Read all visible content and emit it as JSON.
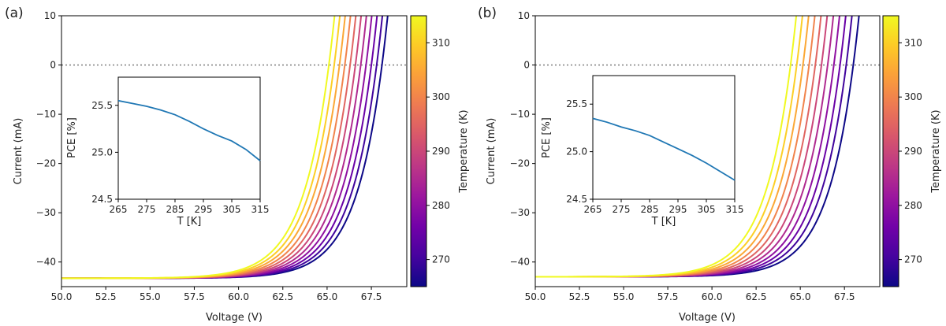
{
  "colorbar": {
    "label": "Temperature (K)",
    "ticks": [
      270,
      280,
      290,
      300,
      310
    ],
    "range": [
      265,
      315
    ],
    "colormap": [
      "#0d0887",
      "#46039f",
      "#7201a8",
      "#9c179e",
      "#bd3786",
      "#d8576b",
      "#ed7953",
      "#fb9f3a",
      "#fdca26",
      "#f0f921"
    ]
  },
  "reference_line": {
    "y": 0,
    "color": "#888888",
    "style": "dotted"
  },
  "chart_data": [
    {
      "panel_label": "(a)",
      "type": "line",
      "xlabel": "Voltage (V)",
      "ylabel": "Current (mA)",
      "xlim": [
        50,
        69.5
      ],
      "ylim": [
        -45,
        10
      ],
      "xticks": [
        "50.0",
        "52.5",
        "55.0",
        "57.5",
        "60.0",
        "62.5",
        "65.0",
        "67.5"
      ],
      "yticks": [
        "−40",
        "−30",
        "−20",
        "−10",
        "0",
        "10"
      ],
      "isc_mA": -43.3,
      "temperatures_K": [
        265,
        270,
        275,
        280,
        285,
        290,
        295,
        300,
        305,
        310,
        315
      ],
      "voc_V": [
        68.1,
        67.8,
        67.5,
        67.2,
        66.9,
        66.6,
        66.3,
        66.0,
        65.7,
        65.4,
        65.1
      ],
      "inset": {
        "type": "line",
        "xlabel": "T [K]",
        "ylabel": "PCE [%]",
        "xlim": [
          265,
          315
        ],
        "ylim": [
          24.5,
          25.8
        ],
        "xticks": [
          "265",
          "275",
          "285",
          "295",
          "305",
          "315"
        ],
        "yticks": [
          "24.5",
          "25.0",
          "25.5"
        ],
        "x": [
          265,
          270,
          275,
          280,
          285,
          290,
          295,
          300,
          305,
          310,
          315
        ],
        "y": [
          25.55,
          25.52,
          25.49,
          25.45,
          25.4,
          25.33,
          25.25,
          25.18,
          25.12,
          25.03,
          24.91
        ],
        "color": "#1f77b4"
      }
    },
    {
      "panel_label": "(b)",
      "type": "line",
      "xlabel": "Voltage (V)",
      "ylabel": "Current (mA)",
      "xlim": [
        50,
        69.5
      ],
      "ylim": [
        -45,
        10
      ],
      "xticks": [
        "50.0",
        "52.5",
        "55.0",
        "57.5",
        "60.0",
        "62.5",
        "65.0",
        "67.5"
      ],
      "yticks": [
        "−40",
        "−30",
        "−20",
        "−10",
        "0",
        "10"
      ],
      "isc_mA": -43.0,
      "temperatures_K": [
        265,
        270,
        275,
        280,
        285,
        290,
        295,
        300,
        305,
        310,
        315
      ],
      "voc_V": [
        68.0,
        67.6,
        67.25,
        66.9,
        66.55,
        66.2,
        65.85,
        65.5,
        65.15,
        64.8,
        64.45
      ],
      "inset": {
        "type": "line",
        "xlabel": "T [K]",
        "ylabel": "PCE [%]",
        "xlim": [
          265,
          315
        ],
        "ylim": [
          24.5,
          25.8
        ],
        "xticks": [
          "265",
          "275",
          "285",
          "295",
          "305",
          "315"
        ],
        "yticks": [
          "24.5",
          "25.0",
          "25.5"
        ],
        "x": [
          265,
          270,
          275,
          280,
          285,
          290,
          295,
          300,
          305,
          310,
          315
        ],
        "y": [
          25.35,
          25.31,
          25.26,
          25.22,
          25.17,
          25.1,
          25.03,
          24.96,
          24.88,
          24.79,
          24.7
        ],
        "color": "#1f77b4"
      }
    }
  ]
}
